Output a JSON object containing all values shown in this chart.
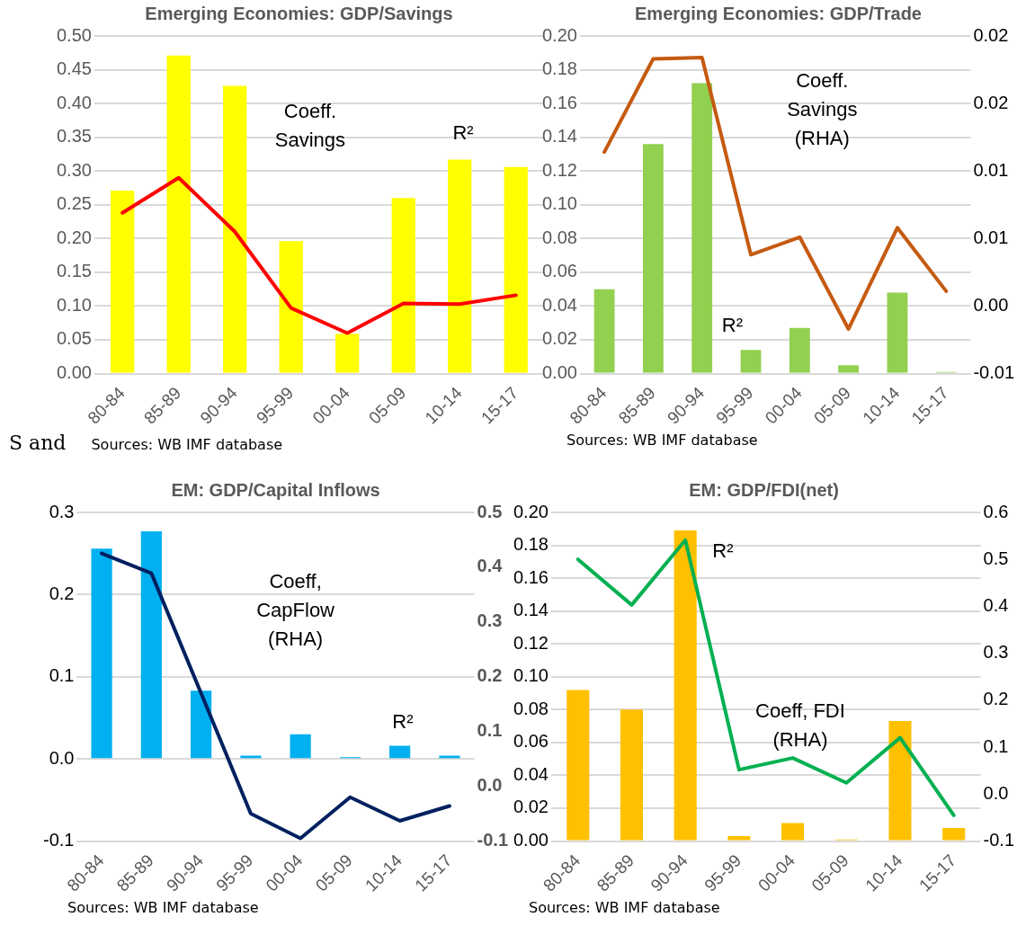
{
  "chart_data": [
    {
      "type": "bar",
      "title": "Emerging Economies: GDP/Savings",
      "categories": [
        "80-84",
        "85-89",
        "90-94",
        "95-99",
        "00-04",
        "05-09",
        "10-14",
        "15-17"
      ],
      "series": [
        {
          "type": "bar",
          "color": "#ffff00",
          "values": [
            0.271,
            0.471,
            0.426,
            0.196,
            0.059,
            0.26,
            0.317,
            0.306
          ]
        },
        {
          "type": "line",
          "color": "#ff0000",
          "values": [
            0.238,
            0.29,
            0.21,
            0.097,
            0.06,
            0.104,
            0.103,
            0.116
          ]
        }
      ],
      "ylim": [
        0,
        0.5
      ],
      "yticks": [
        {
          "value": 0,
          "label": "0.00"
        },
        0.05,
        {
          "value": 0.1,
          "label": "0.10"
        },
        0.15,
        {
          "value": 0.2,
          "label": "0.20"
        },
        0.25,
        {
          "value": 0.3,
          "label": "0.30"
        },
        0.35,
        {
          "value": 0.4,
          "label": "0.40"
        },
        0.45,
        {
          "value": 0.5,
          "label": "0.50"
        }
      ],
      "grid": "y",
      "annotations": [
        "Coeff. Savings",
        "R²",
        "S and",
        "Sources: WB IMF database"
      ]
    },
    {
      "type": "bar",
      "title": "Emerging Economies: GDP/Trade",
      "categories": [
        "80-84",
        "85-89",
        "90-94",
        "95-99",
        "00-04",
        "05-09",
        "10-14",
        "15-17"
      ],
      "series": [
        {
          "type": "bar",
          "color": "#92d050",
          "values": [
            0.05,
            0.136,
            0.172,
            0.014,
            0.027,
            0.005,
            0.048,
            0.001
          ]
        },
        {
          "type": "line",
          "color": "#c55a11",
          "axis": "y2",
          "values": [
            0.0114,
            0.0183,
            0.0184,
            0.0038,
            0.0051,
            -0.0017,
            0.0058,
            0.0011
          ]
        }
      ],
      "ylim": [
        0,
        0.2
      ],
      "yticks": [
        {
          "value": 0,
          "label": "0.00"
        },
        0.02,
        0.04,
        0.06,
        0.08,
        {
          "value": 0.1,
          "label": "0.10"
        },
        0.12,
        0.14,
        0.16,
        0.18,
        {
          "value": 0.2,
          "label": "0.20"
        }
      ],
      "y2lim": [
        -0.005,
        0.02
      ],
      "y2ticks": [
        {
          "value": -0.005,
          "label": "-0.01"
        },
        {
          "value": 0,
          "label": "0.00"
        },
        {
          "value": 0.005,
          "label": "0.01"
        },
        0.01,
        {
          "value": 0.015,
          "label": "0.02"
        },
        0.02
      ],
      "grid": "y",
      "annotations": [
        "Coeff. Savings (RHA)",
        "R²",
        "Sources: WB IMF database"
      ]
    },
    {
      "type": "bar",
      "title": "EM: GDP/Capital Inflows",
      "categories": [
        "80-84",
        "85-89",
        "90-94",
        "95-99",
        "00-04",
        "05-09",
        "10-14",
        "15-17"
      ],
      "series": [
        {
          "type": "bar",
          "color": "#00b0f0",
          "values": [
            0.256,
            0.277,
            0.083,
            0.004,
            0.03,
            0.002,
            0.016,
            0.004
          ]
        },
        {
          "type": "line",
          "color": "#002060",
          "axis": "y2",
          "values": [
            0.425,
            0.389,
            0.17,
            -0.05,
            -0.095,
            -0.02,
            -0.063,
            -0.036
          ]
        }
      ],
      "ylim": [
        -0.1,
        0.3
      ],
      "yticks": [
        -0.1,
        {
          "value": 0,
          "label": "0.0"
        },
        0.1,
        0.2,
        0.3
      ],
      "y2lim": [
        -0.1,
        0.5
      ],
      "y2ticks": [
        -0.1,
        {
          "value": 0,
          "label": "0.0"
        },
        0.1,
        0.2,
        0.3,
        0.4,
        0.5
      ],
      "grid": "y",
      "annotations": [
        "Coeff, CapFlow (RHA)",
        "R²",
        "Sources: WB IMF database"
      ]
    },
    {
      "type": "bar",
      "title": "EM: GDP/FDI(net)",
      "categories": [
        "80-84",
        "85-89",
        "90-94",
        "95-99",
        "00-04",
        "05-09",
        "10-14",
        "15-17"
      ],
      "series": [
        {
          "type": "bar",
          "color": "#ffc000",
          "values": [
            0.092,
            0.08,
            0.189,
            0.003,
            0.011,
            0.001,
            0.073,
            0.008
          ]
        },
        {
          "type": "line",
          "color": "#00b050",
          "axis": "y2",
          "values": [
            0.5,
            0.403,
            0.541,
            0.052,
            0.077,
            0.024,
            0.12,
            -0.045
          ]
        }
      ],
      "ylim": [
        0,
        0.2
      ],
      "yticks": [
        {
          "value": 0,
          "label": "0.00"
        },
        0.02,
        0.04,
        0.06,
        0.08,
        {
          "value": 0.1,
          "label": "0.10"
        },
        0.12,
        0.14,
        0.16,
        0.18,
        {
          "value": 0.2,
          "label": "0.20"
        }
      ],
      "y2lim": [
        -0.1,
        0.6
      ],
      "y2ticks": [
        -0.1,
        {
          "value": 0,
          "label": "0.0"
        },
        0.1,
        0.2,
        0.3,
        0.4,
        0.5,
        0.6
      ],
      "grid": "y",
      "annotations": [
        "Coeff, FDI (RHA)",
        "R²",
        "Sources: WB IMF database"
      ]
    }
  ]
}
